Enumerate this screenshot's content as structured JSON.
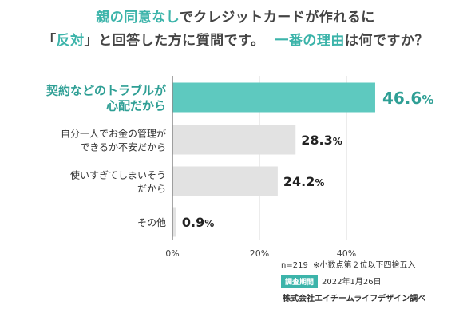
{
  "title": {
    "line1_highlight": "親の同意なし",
    "line1_rest": "でクレジットカードが作れるに",
    "line2_open": "「",
    "line2_highlight": "反対",
    "line2_mid": "」と回答した方に質問です。",
    "line2_highlight2": "一番の理由",
    "line2_end": "は何ですか？"
  },
  "chart_data": {
    "type": "bar",
    "orientation": "horizontal",
    "categories": [
      [
        "契約などのトラブルが",
        "心配だから"
      ],
      [
        "自分一人でお金の管理が",
        "できるか不安だから"
      ],
      [
        "使いすぎてしまいそう",
        "だから"
      ],
      [
        "その他"
      ]
    ],
    "values": [
      46.6,
      28.3,
      24.2,
      0.9
    ],
    "value_labels": [
      "46.6",
      "28.3",
      "24.2",
      "0.9"
    ],
    "value_unit": "%",
    "ticks": [
      "0%",
      "20%",
      "40%"
    ],
    "xlim": [
      0,
      50
    ],
    "highlight_color": "#5ec9bf",
    "highlight_text_color": "#2f9f95",
    "bar_color": "#e2e2e2",
    "grid": true
  },
  "footer": {
    "n": "n=219",
    "note": "※小数点第２位以下四捨五入",
    "period_label": "調査期間",
    "period": "2022年1月26日",
    "company": "株式会社エイチームライフデザイン調べ"
  }
}
